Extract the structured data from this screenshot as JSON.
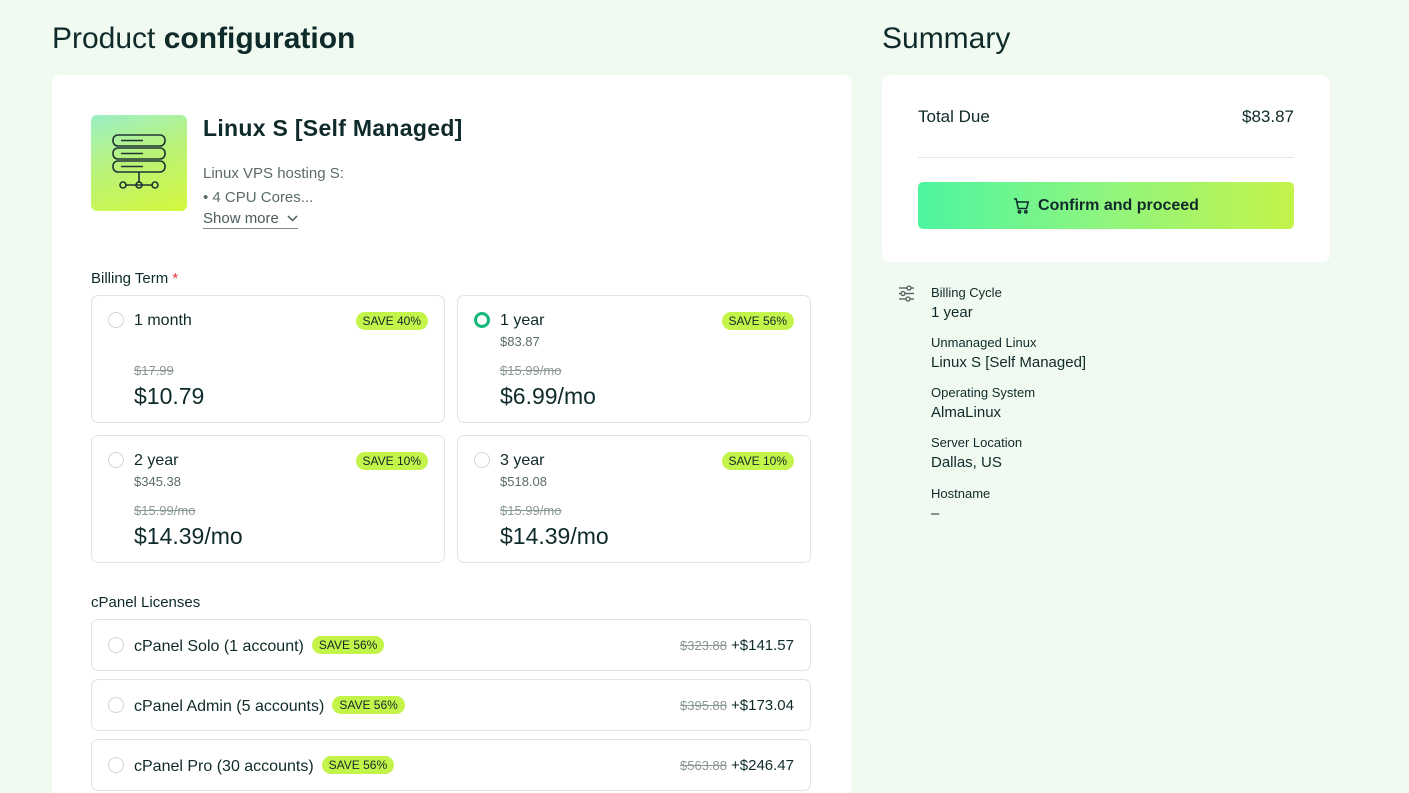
{
  "header": {
    "title_regular": "Product",
    "title_bold": "configuration",
    "summary_title": "Summary"
  },
  "product": {
    "name": "Linux S [Self Managed]",
    "desc_line1": "Linux VPS hosting S:",
    "desc_line2": "• 4 CPU Cores...",
    "show_more": "Show more",
    "thumb_icon": "server-stack-icon"
  },
  "billing": {
    "label": "Billing Term",
    "required_mark": "*",
    "terms": [
      {
        "label": "1 month",
        "total": "",
        "save": "SAVE 40%",
        "old": "$17.99",
        "price": "$10.79",
        "selected": false
      },
      {
        "label": "1 year",
        "total": "$83.87",
        "save": "SAVE 56%",
        "old": "$15.99/mo",
        "price": "$6.99/mo",
        "selected": true
      },
      {
        "label": "2 year",
        "total": "$345.38",
        "save": "SAVE 10%",
        "old": "$15.99/mo",
        "price": "$14.39/mo",
        "selected": false
      },
      {
        "label": "3 year",
        "total": "$518.08",
        "save": "SAVE 10%",
        "old": "$15.99/mo",
        "price": "$14.39/mo",
        "selected": false
      }
    ]
  },
  "cpanel": {
    "label": "cPanel Licenses",
    "items": [
      {
        "name": "cPanel Solo (1 account)",
        "save": "SAVE 56%",
        "old": "$323.88",
        "price": "+$141.57"
      },
      {
        "name": "cPanel Admin (5 accounts)",
        "save": "SAVE 56%",
        "old": "$395.88",
        "price": "+$173.04"
      },
      {
        "name": "cPanel Pro (30 accounts)",
        "save": "SAVE 56%",
        "old": "$563.88",
        "price": "+$246.47"
      }
    ]
  },
  "summary": {
    "total_label": "Total Due",
    "total_value": "$83.87",
    "confirm_label": "Confirm and proceed",
    "details": [
      {
        "label": "Billing Cycle",
        "value": "1 year"
      },
      {
        "label": "Unmanaged Linux",
        "value": "Linux S [Self Managed]"
      },
      {
        "label": "Operating System",
        "value": "AlmaLinux"
      },
      {
        "label": "Server Location",
        "value": "Dallas, US"
      },
      {
        "label": "Hostname",
        "value": "–"
      }
    ]
  },
  "colors": {
    "accent_green": "#14b87a",
    "badge": "#c4f34a",
    "background": "#f1faf0"
  }
}
